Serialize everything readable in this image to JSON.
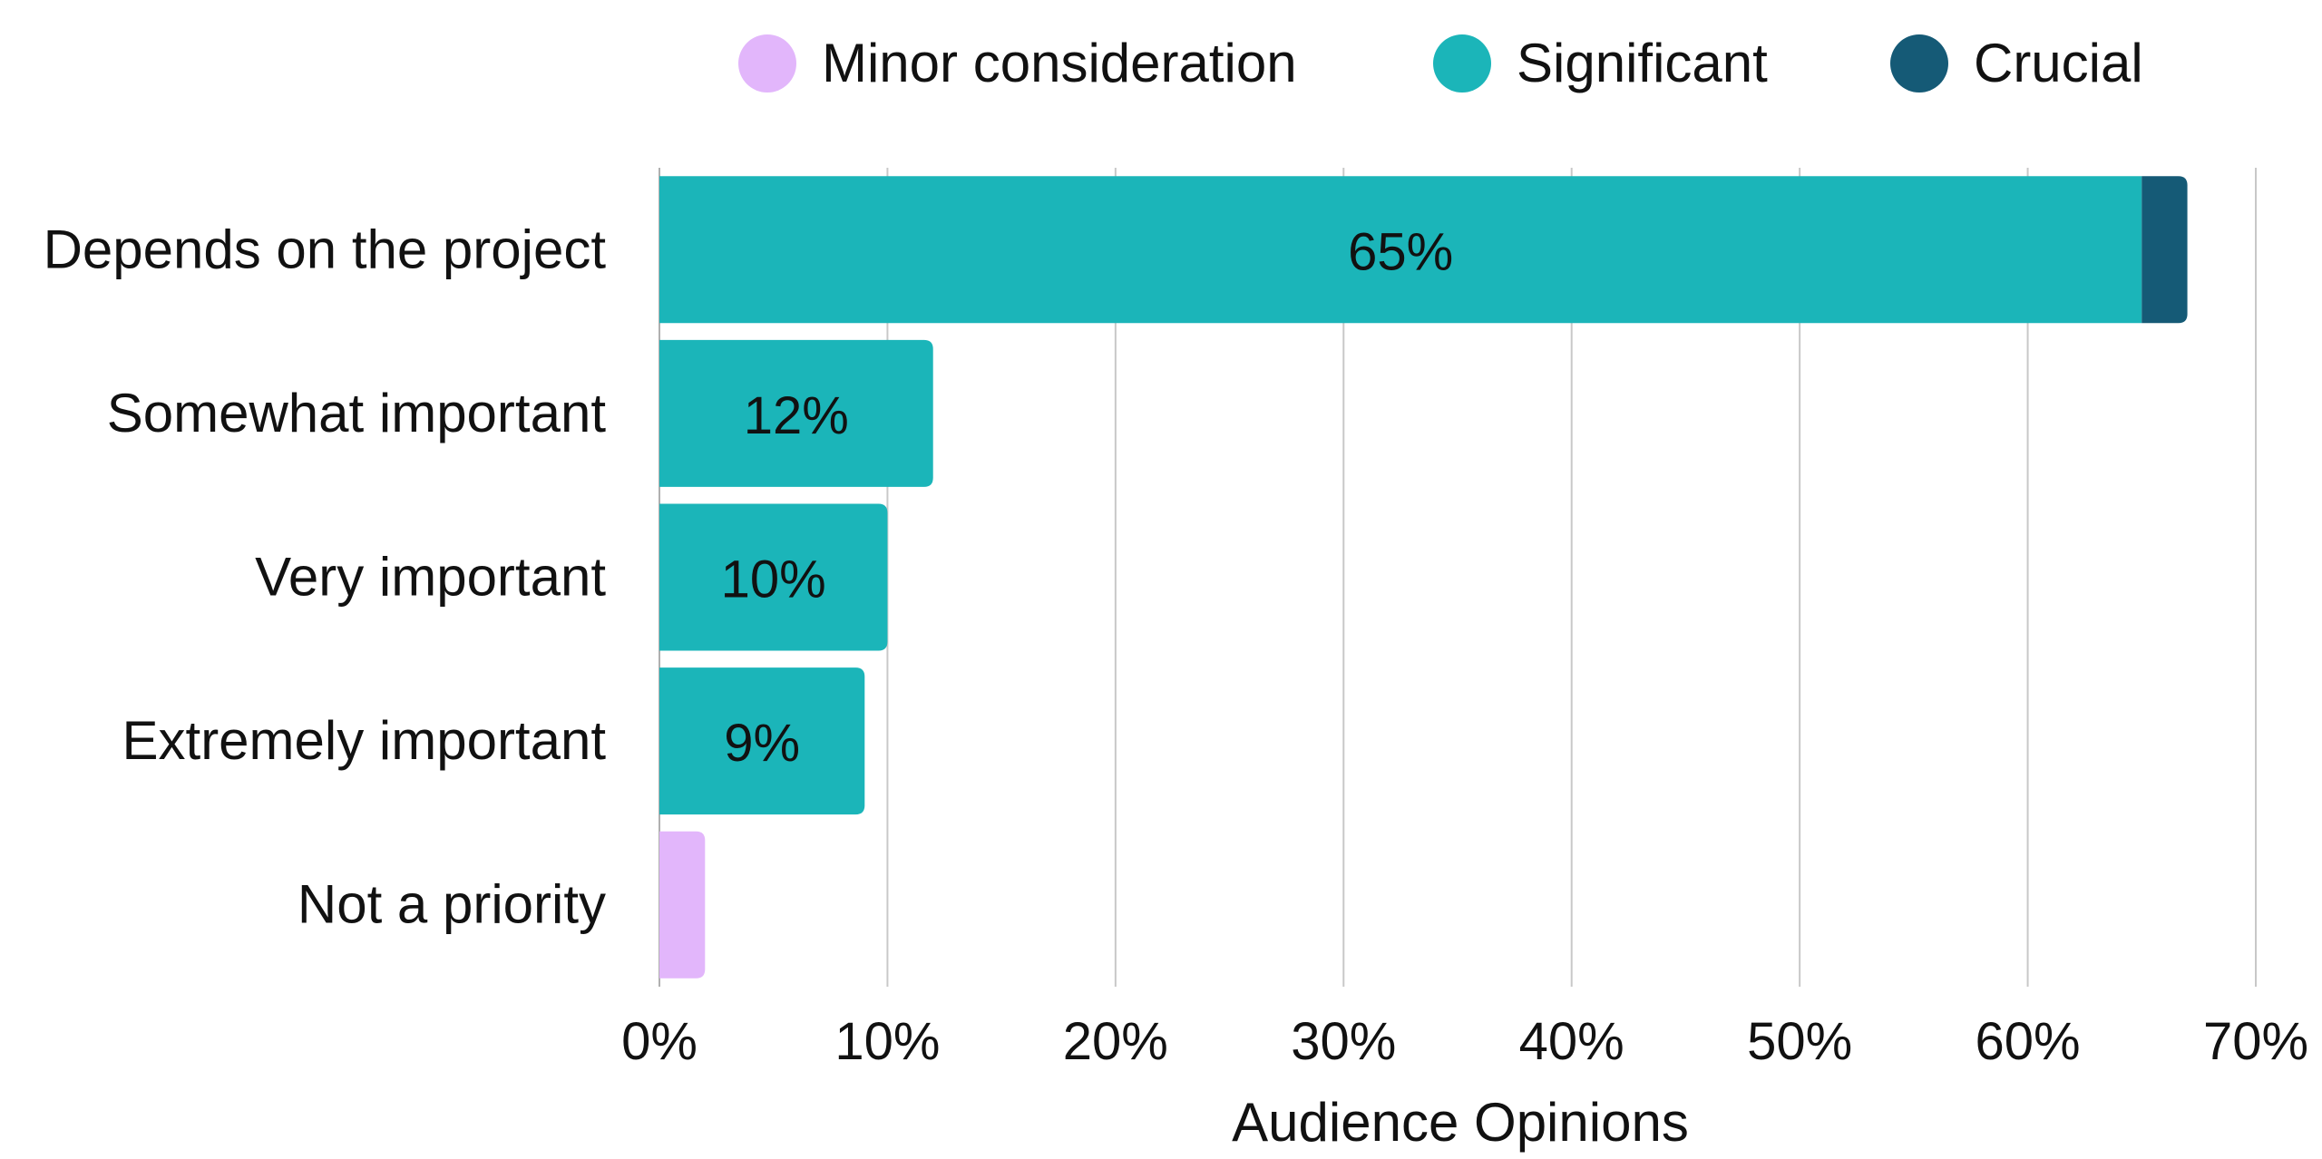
{
  "chart_data": {
    "type": "bar",
    "orientation": "horizontal",
    "stacked": true,
    "categories": [
      "Depends on the project",
      "Somewhat important",
      "Very important",
      "Extremely important",
      "Not a priority"
    ],
    "series": [
      {
        "name": "Minor consideration",
        "color": "#e2b6fb",
        "values": [
          0,
          0,
          0,
          0,
          2
        ]
      },
      {
        "name": "Significant",
        "color": "#1bb5b9",
        "values": [
          65,
          12,
          10,
          9,
          0
        ]
      },
      {
        "name": "Crucial",
        "color": "#155a76",
        "values": [
          2,
          0,
          0,
          0,
          0
        ]
      }
    ],
    "data_labels": [
      "65%",
      "12%",
      "10%",
      "9%",
      ""
    ],
    "xlim": [
      0,
      70
    ],
    "x_ticks": [
      0,
      10,
      20,
      30,
      40,
      50,
      60,
      70
    ],
    "x_tick_labels": [
      "0%",
      "10%",
      "20%",
      "30%",
      "40%",
      "50%",
      "60%",
      "70%"
    ],
    "xlabel": "Audience Opinions",
    "grid": true,
    "legend_position": "top"
  }
}
